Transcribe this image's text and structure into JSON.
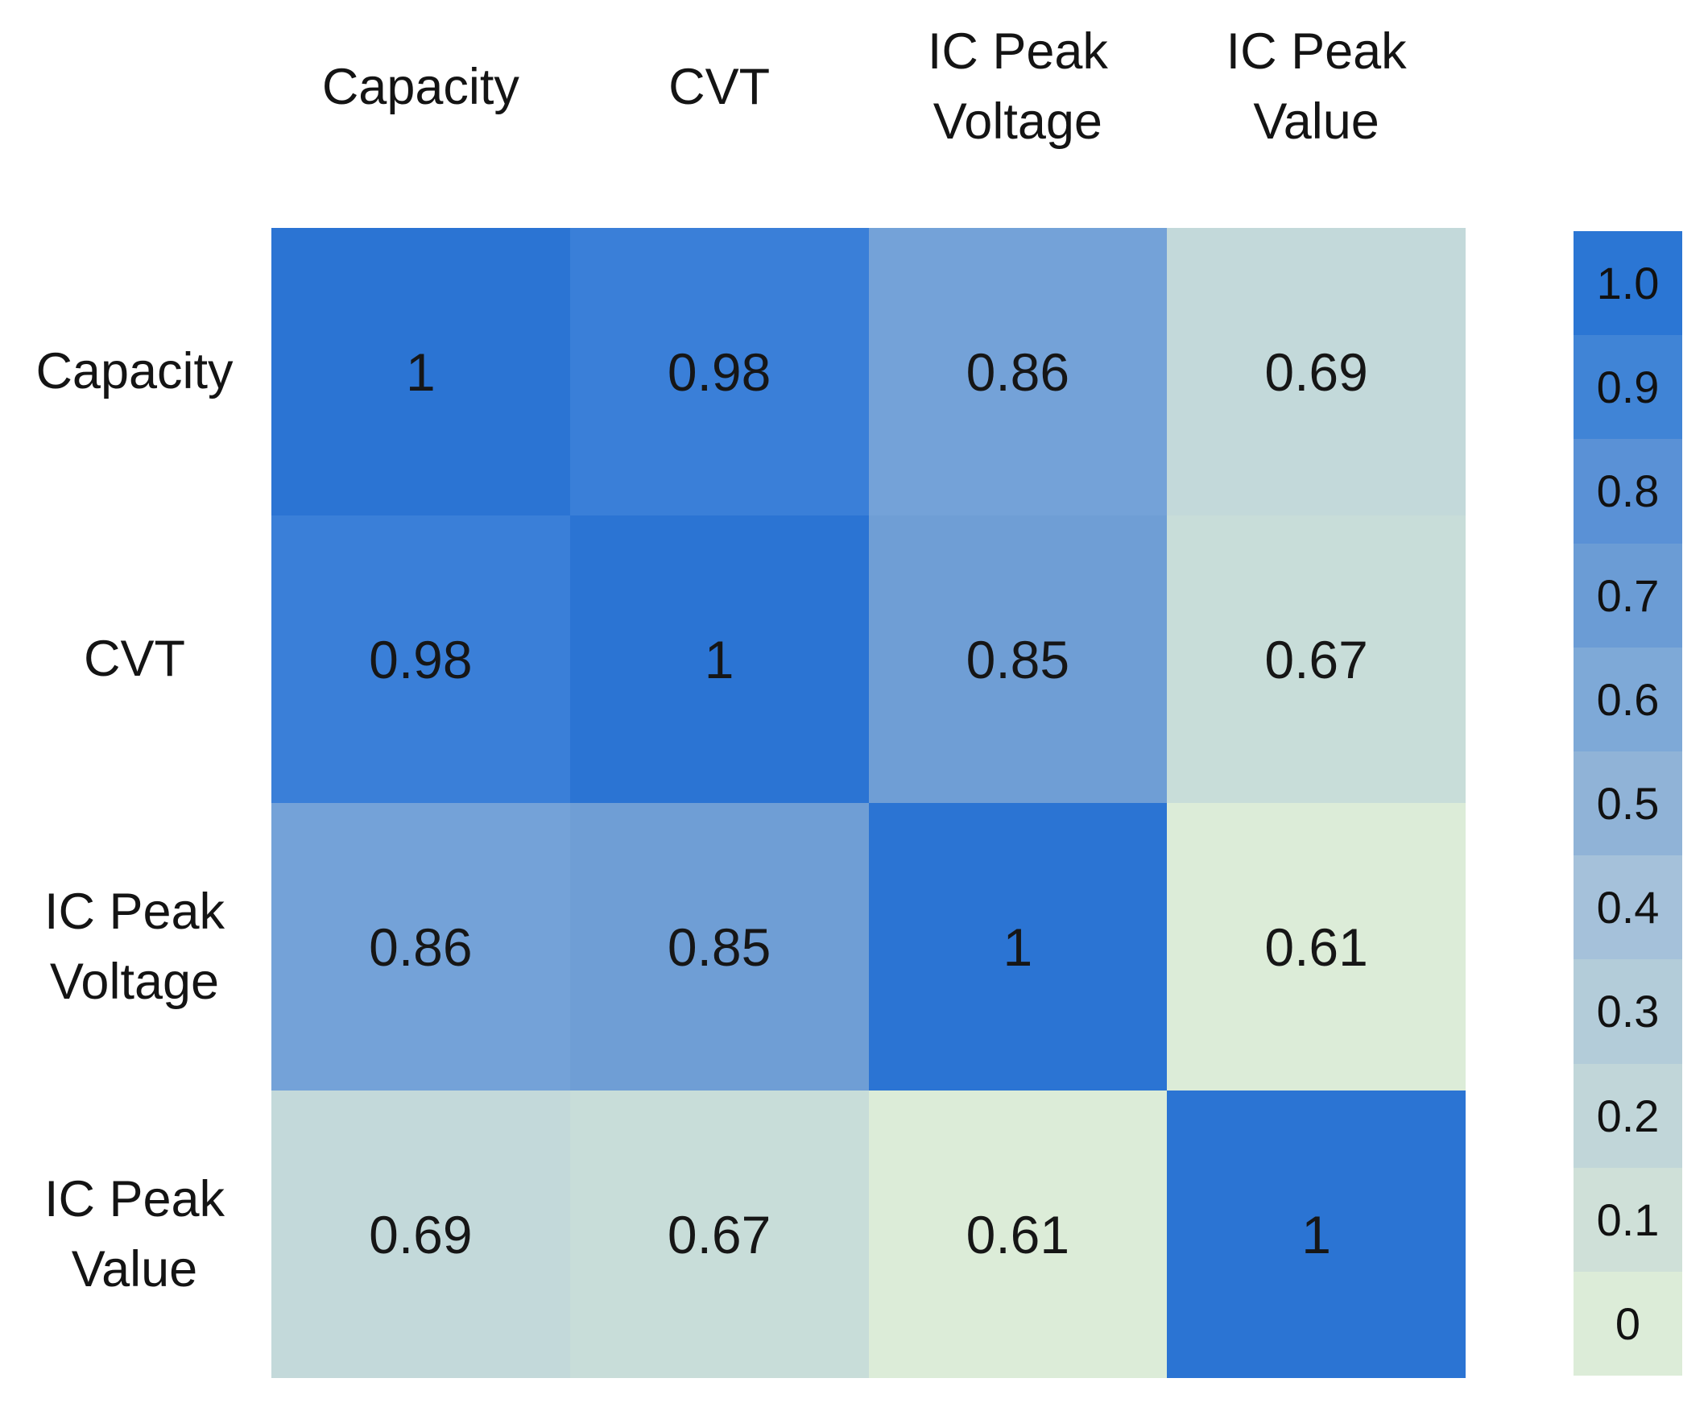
{
  "page": {
    "background": "#ffffff"
  },
  "chart_data": {
    "type": "heatmap",
    "title": "",
    "variables": [
      "Capacity",
      "CVT",
      "IC Peak Voltage",
      "IC Peak Value"
    ],
    "col_header_lines": [
      [
        "Capacity"
      ],
      [
        "CVT"
      ],
      [
        "IC Peak",
        "Voltage"
      ],
      [
        "IC Peak",
        "Value"
      ]
    ],
    "row_header_lines": [
      [
        "Capacity"
      ],
      [
        "CVT"
      ],
      [
        "IC Peak",
        "Voltage"
      ],
      [
        "IC Peak",
        "Value"
      ]
    ],
    "matrix": [
      [
        1,
        0.98,
        0.86,
        0.69
      ],
      [
        0.98,
        1,
        0.85,
        0.67
      ],
      [
        0.86,
        0.85,
        1,
        0.61
      ],
      [
        0.69,
        0.67,
        0.61,
        1
      ]
    ],
    "cell_text": [
      [
        "1",
        "0.98",
        "0.86",
        "0.69"
      ],
      [
        "0.98",
        "1",
        "0.85",
        "0.67"
      ],
      [
        "0.86",
        "0.85",
        "1",
        "0.61"
      ],
      [
        "0.69",
        "0.67",
        "0.61",
        "1"
      ]
    ],
    "value_colors": {
      "1": "#2b74d3",
      "0.98": "#3a7fd8",
      "0.86": "#74a2d8",
      "0.85": "#6f9ed5",
      "0.69": "#c3d9da",
      "0.67": "#c8ddd9",
      "0.61": "#dcecd8"
    },
    "colorbar": {
      "position": "right",
      "range": [
        0,
        1
      ],
      "labels": [
        "1.0",
        "0.9",
        "0.8",
        "0.7",
        "0.6",
        "0.5",
        "0.4",
        "0.3",
        "0.2",
        "0.1",
        "0"
      ],
      "colors": [
        "#2b76d4",
        "#4084d6",
        "#5a91d6",
        "#6b9cd5",
        "#7ea9d7",
        "#90b3d7",
        "#a5c1da",
        "#b3ccd9",
        "#c1d6d9",
        "#cfe0d8",
        "#dcecd8"
      ]
    },
    "text_color": "#161616",
    "grid": false
  }
}
